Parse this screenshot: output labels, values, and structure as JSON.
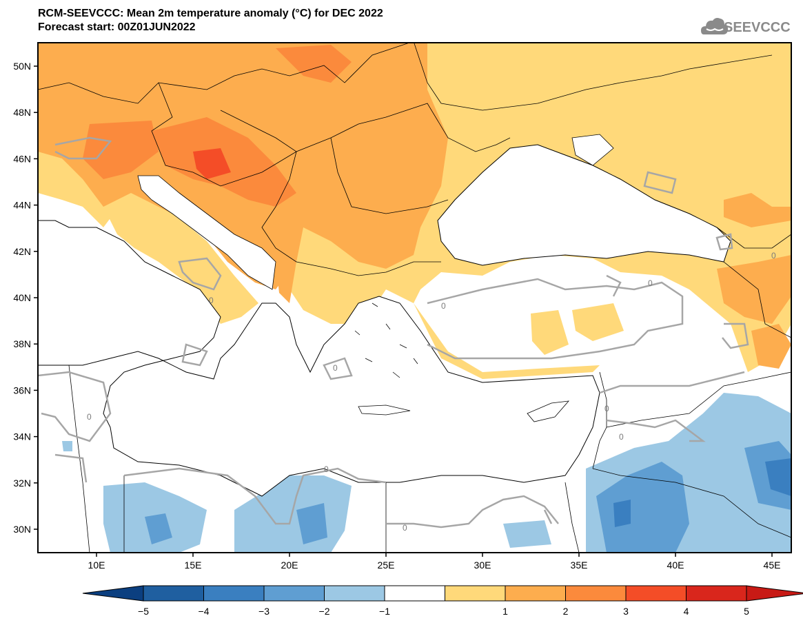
{
  "header": {
    "title": "RCM-SEEVCCC: Mean 2m temperature anomaly (°C) for DEC 2022",
    "subtitle": "Forecast start: 00Z01JUN2022",
    "logo_text": "SEEVCCC"
  },
  "map": {
    "lat_labels": [
      "50N",
      "48N",
      "46N",
      "44N",
      "42N",
      "40N",
      "38N",
      "36N",
      "34N",
      "32N",
      "30N"
    ],
    "lon_labels": [
      "10E",
      "15E",
      "20E",
      "25E",
      "30E",
      "35E",
      "40E",
      "45E"
    ],
    "contour_labels": [
      "0",
      "0",
      "0",
      "0",
      "0",
      "0",
      "0",
      "0",
      "0",
      "0"
    ]
  },
  "colorbar": {
    "labels": [
      "−5",
      "−4",
      "−3",
      "−2",
      "−1",
      "1",
      "2",
      "3",
      "4",
      "5"
    ],
    "colors": [
      "#1f5fa0",
      "#3a7fc0",
      "#5f9ed2",
      "#9cc8e4",
      "#ffffff",
      "#ffd97a",
      "#fdad4e",
      "#fb8a3c",
      "#f44d27",
      "#d9261c"
    ],
    "low_arrow_color": "#0b3f80",
    "high_arrow_color": "#c81a15"
  },
  "legend_colors": {
    "light_orange": "#ffd97a",
    "orange": "#fdad4e",
    "dark_orange": "#fb8a3c",
    "red": "#f44d27",
    "light_blue": "#9cc8e4",
    "blue": "#5f9ed2",
    "dark_blue": "#3a7fc0",
    "contour_gray": "#a6a6a6"
  }
}
